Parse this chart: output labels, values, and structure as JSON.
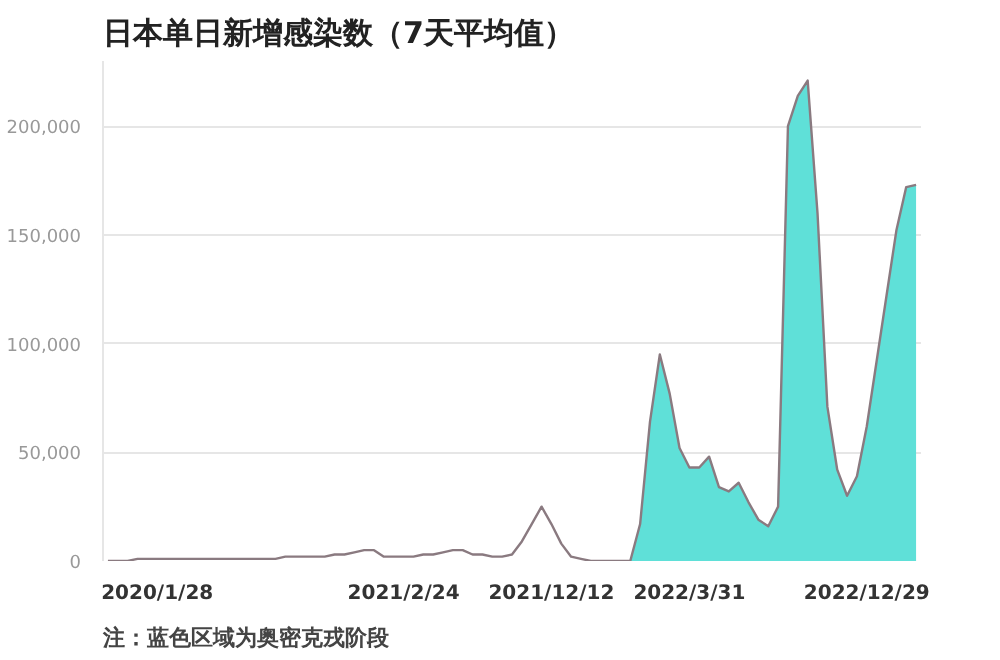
{
  "chart_data": {
    "type": "line",
    "title": "日本单日新增感染数（7天平均值）",
    "annotations": [
      "注：蓝色区域为奥密克戎阶段"
    ],
    "categories": [
      null,
      null,
      null,
      null,
      null,
      "2020/1/28",
      null,
      null,
      null,
      null,
      null,
      null,
      null,
      null,
      null,
      null,
      null,
      null,
      null,
      null,
      null,
      null,
      null,
      null,
      null,
      null,
      null,
      null,
      null,
      null,
      "2021/2/24",
      null,
      null,
      null,
      null,
      null,
      null,
      null,
      null,
      null,
      null,
      null,
      null,
      null,
      null,
      "2021/12/12",
      null,
      null,
      null,
      null,
      null,
      null,
      null,
      null,
      null,
      null,
      null,
      null,
      null,
      "2022/3/31",
      null,
      null,
      null,
      null,
      null,
      null,
      null,
      null,
      null,
      null,
      null,
      null,
      null,
      null,
      null,
      null,
      null,
      "2022/12/29",
      null,
      null,
      null,
      null,
      null
    ],
    "ylim": [
      0,
      230000
    ],
    "yticks": [
      {
        "value": 0,
        "label": "0"
      },
      {
        "value": 50000,
        "label": "50,000"
      },
      {
        "value": 100000,
        "label": "100,000"
      },
      {
        "value": 150000,
        "label": "150,000"
      },
      {
        "value": 200000,
        "label": "200,000"
      }
    ],
    "grid": "y",
    "series": [
      {
        "type": "area",
        "color": "#5fe0d8",
        "values": [
          null,
          null,
          null,
          null,
          null,
          null,
          null,
          null,
          null,
          null,
          null,
          null,
          null,
          null,
          null,
          null,
          null,
          null,
          null,
          null,
          null,
          null,
          null,
          null,
          null,
          null,
          null,
          null,
          null,
          null,
          null,
          null,
          null,
          null,
          null,
          null,
          null,
          null,
          null,
          null,
          null,
          null,
          null,
          null,
          null,
          null,
          null,
          null,
          null,
          null,
          null,
          null,
          null,
          0,
          17000,
          64000,
          95000,
          77000,
          52000,
          43000,
          43000,
          48000,
          34000,
          32000,
          36000,
          27000,
          19000,
          16000,
          25000,
          200000,
          214000,
          221000,
          160000,
          71000,
          42000,
          30000,
          39000,
          62000,
          92000,
          122000,
          152000,
          172000,
          173000
        ]
      },
      {
        "color": "#8a7a80",
        "values": [
          0,
          0,
          0,
          1000,
          1000,
          1000,
          1000,
          1000,
          1000,
          1000,
          1000,
          1000,
          1000,
          1000,
          1000,
          1000,
          1000,
          1000,
          2000,
          2000,
          2000,
          2000,
          2000,
          3000,
          3000,
          4000,
          5000,
          5000,
          2000,
          2000,
          2000,
          2000,
          3000,
          3000,
          4000,
          5000,
          5000,
          3000,
          3000,
          2000,
          2000,
          3000,
          9000,
          17000,
          25000,
          17000,
          8000,
          2000,
          1000,
          0,
          0,
          0,
          0,
          0,
          17000,
          64000,
          95000,
          77000,
          52000,
          43000,
          43000,
          48000,
          34000,
          32000,
          36000,
          27000,
          19000,
          16000,
          25000,
          200000,
          214000,
          221000,
          160000,
          71000,
          42000,
          30000,
          39000,
          62000,
          92000,
          122000,
          152000,
          172000,
          173000
        ]
      }
    ]
  }
}
